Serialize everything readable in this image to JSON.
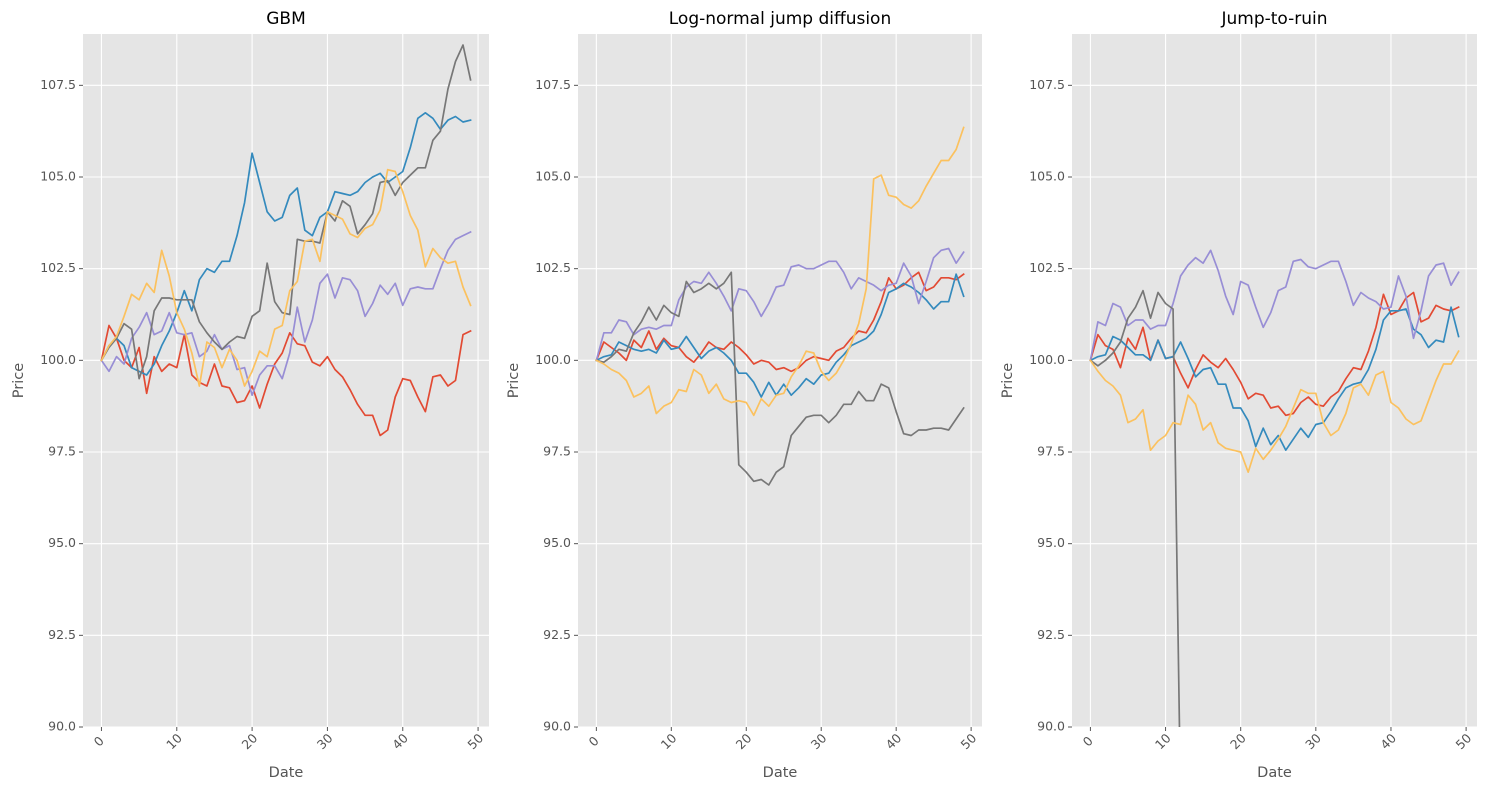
{
  "chart_data": [
    {
      "type": "line",
      "title": "GBM",
      "xlabel": "Date",
      "ylabel": "Price",
      "xlim": [
        -2.45,
        51.45
      ],
      "ylim": [
        90.0,
        108.9
      ],
      "xticks": [
        "0",
        "10",
        "20",
        "30",
        "40",
        "50"
      ],
      "yticks": [
        "90.0",
        "92.5",
        "95.0",
        "97.5",
        "100.0",
        "102.5",
        "105.0",
        "107.5"
      ],
      "grid": true,
      "series": [
        {
          "color": "#E24A33",
          "values": [
            100.0,
            100.95,
            100.6,
            100.0,
            99.8,
            100.35,
            99.1,
            100.1,
            99.7,
            99.9,
            99.8,
            100.7,
            99.6,
            99.4,
            99.3,
            99.9,
            99.3,
            99.25,
            98.85,
            98.9,
            99.3,
            98.7,
            99.35,
            99.9,
            100.2,
            100.75,
            100.45,
            100.4,
            99.95,
            99.85,
            100.1,
            99.75,
            99.55,
            99.2,
            98.8,
            98.5,
            98.5,
            97.95,
            98.1,
            99.0,
            99.5,
            99.45,
            99.0,
            98.6,
            99.55,
            99.6,
            99.3,
            99.45,
            100.7,
            100.8
          ]
        },
        {
          "color": "#348ABD",
          "values": [
            100.0,
            100.4,
            100.6,
            100.4,
            99.8,
            99.7,
            99.6,
            99.9,
            100.4,
            100.8,
            101.3,
            101.9,
            101.35,
            102.2,
            102.5,
            102.4,
            102.7,
            102.7,
            103.4,
            104.3,
            105.65,
            104.85,
            104.05,
            103.8,
            103.9,
            104.5,
            104.7,
            103.55,
            103.4,
            103.9,
            104.05,
            104.6,
            104.55,
            104.5,
            104.6,
            104.85,
            105.0,
            105.1,
            104.85,
            105.0,
            105.15,
            105.8,
            106.6,
            106.75,
            106.6,
            106.3,
            106.55,
            106.65,
            106.5,
            106.55
          ]
        },
        {
          "color": "#988ED5",
          "values": [
            100.0,
            99.7,
            100.1,
            99.9,
            100.6,
            100.9,
            101.3,
            100.7,
            100.8,
            101.3,
            100.75,
            100.7,
            100.75,
            100.1,
            100.25,
            100.7,
            100.3,
            100.4,
            99.75,
            99.8,
            99.05,
            99.6,
            99.85,
            99.85,
            99.5,
            100.2,
            101.45,
            100.5,
            101.1,
            102.1,
            102.35,
            101.7,
            102.25,
            102.2,
            101.9,
            101.2,
            101.55,
            102.05,
            101.8,
            102.1,
            101.5,
            101.95,
            102.0,
            101.95,
            101.95,
            102.5,
            103.0,
            103.3,
            103.4,
            103.5
          ]
        },
        {
          "color": "#777777",
          "values": [
            100.0,
            100.35,
            100.6,
            101.0,
            100.85,
            99.5,
            100.1,
            101.35,
            101.7,
            101.7,
            101.65,
            101.65,
            101.65,
            101.05,
            100.75,
            100.5,
            100.3,
            100.5,
            100.65,
            100.6,
            101.2,
            101.35,
            102.65,
            101.6,
            101.3,
            101.25,
            103.3,
            103.25,
            103.25,
            103.2,
            104.05,
            103.8,
            104.35,
            104.2,
            103.45,
            103.7,
            104.0,
            104.85,
            104.9,
            104.5,
            104.85,
            105.05,
            105.25,
            105.25,
            106.0,
            106.25,
            107.4,
            108.15,
            108.6,
            107.65
          ]
        },
        {
          "color": "#FBC15E",
          "values": [
            100.0,
            100.4,
            100.65,
            101.2,
            101.8,
            101.65,
            102.1,
            101.85,
            103.0,
            102.3,
            101.3,
            100.85,
            100.2,
            99.3,
            100.5,
            100.35,
            99.8,
            100.3,
            100.0,
            99.3,
            99.7,
            100.25,
            100.1,
            100.85,
            100.95,
            101.9,
            102.15,
            103.25,
            103.3,
            102.7,
            104.05,
            103.95,
            103.85,
            103.45,
            103.35,
            103.6,
            103.7,
            104.1,
            105.2,
            105.15,
            104.6,
            103.95,
            103.55,
            102.55,
            103.05,
            102.8,
            102.65,
            102.7,
            102.0,
            101.5
          ]
        }
      ]
    },
    {
      "type": "line",
      "title": "Log-normal jump diffusion",
      "xlabel": "Date",
      "ylabel": "Price",
      "xlim": [
        -2.45,
        51.45
      ],
      "ylim": [
        90.0,
        108.9
      ],
      "xticks": [
        "0",
        "10",
        "20",
        "30",
        "40",
        "50"
      ],
      "yticks": [
        "90.0",
        "92.5",
        "95.0",
        "97.5",
        "100.0",
        "102.5",
        "105.0",
        "107.5"
      ],
      "grid": true,
      "series": [
        {
          "color": "#E24A33",
          "values": [
            100.0,
            100.5,
            100.35,
            100.2,
            100.0,
            100.55,
            100.35,
            100.8,
            100.3,
            100.6,
            100.4,
            100.35,
            100.1,
            99.95,
            100.2,
            100.5,
            100.35,
            100.3,
            100.5,
            100.35,
            100.15,
            99.9,
            100.0,
            99.95,
            99.75,
            99.8,
            99.7,
            99.8,
            100.0,
            100.1,
            100.05,
            100.0,
            100.25,
            100.35,
            100.6,
            100.8,
            100.75,
            101.1,
            101.6,
            102.25,
            101.95,
            102.05,
            102.25,
            102.4,
            101.9,
            102.0,
            102.25,
            102.25,
            102.2,
            102.35
          ]
        },
        {
          "color": "#348ABD",
          "values": [
            100.0,
            100.1,
            100.15,
            100.5,
            100.4,
            100.3,
            100.25,
            100.3,
            100.2,
            100.55,
            100.3,
            100.35,
            100.65,
            100.35,
            100.05,
            100.25,
            100.35,
            100.2,
            100.0,
            99.65,
            99.65,
            99.4,
            99.0,
            99.4,
            99.05,
            99.35,
            99.05,
            99.25,
            99.5,
            99.35,
            99.6,
            99.65,
            99.95,
            100.15,
            100.4,
            100.5,
            100.6,
            100.8,
            101.25,
            101.85,
            101.95,
            102.1,
            102.0,
            101.85,
            101.65,
            101.4,
            101.6,
            101.6,
            102.35,
            101.75
          ]
        },
        {
          "color": "#988ED5",
          "values": [
            100.0,
            100.75,
            100.75,
            101.1,
            101.05,
            100.7,
            100.85,
            100.9,
            100.85,
            100.95,
            100.95,
            101.65,
            102.0,
            102.15,
            102.1,
            102.4,
            102.1,
            101.75,
            101.35,
            101.95,
            101.9,
            101.6,
            101.2,
            101.55,
            102.0,
            102.05,
            102.55,
            102.6,
            102.5,
            102.5,
            102.6,
            102.7,
            102.7,
            102.4,
            101.95,
            102.25,
            102.15,
            102.05,
            101.9,
            102.05,
            102.1,
            102.65,
            102.3,
            101.55,
            102.15,
            102.8,
            103.0,
            103.05,
            102.65,
            102.95
          ]
        },
        {
          "color": "#777777",
          "values": [
            100.0,
            99.95,
            100.1,
            100.3,
            100.25,
            100.75,
            101.05,
            101.45,
            101.1,
            101.5,
            101.3,
            101.2,
            102.15,
            101.85,
            101.95,
            102.1,
            101.95,
            102.1,
            102.4,
            97.15,
            96.95,
            96.7,
            96.75,
            96.6,
            96.95,
            97.1,
            97.95,
            98.2,
            98.45,
            98.5,
            98.5,
            98.3,
            98.5,
            98.8,
            98.8,
            99.15,
            98.9,
            98.9,
            99.35,
            99.25,
            98.6,
            98.0,
            97.95,
            98.1,
            98.1,
            98.15,
            98.15,
            98.1,
            98.4,
            98.7
          ]
        },
        {
          "color": "#FBC15E",
          "values": [
            100.0,
            99.9,
            99.75,
            99.65,
            99.45,
            99.0,
            99.1,
            99.3,
            98.55,
            98.75,
            98.85,
            99.2,
            99.15,
            99.75,
            99.6,
            99.1,
            99.35,
            98.95,
            98.85,
            98.9,
            98.85,
            98.5,
            98.95,
            98.75,
            99.05,
            99.1,
            99.55,
            99.85,
            100.25,
            100.2,
            99.7,
            99.45,
            99.65,
            100.0,
            100.45,
            101.0,
            101.95,
            104.95,
            105.05,
            104.5,
            104.45,
            104.25,
            104.15,
            104.35,
            104.75,
            105.1,
            105.45,
            105.45,
            105.75,
            106.35
          ]
        }
      ]
    },
    {
      "type": "line",
      "title": "Jump-to-ruin",
      "xlabel": "Date",
      "ylabel": "Price",
      "xlim": [
        -2.45,
        51.45
      ],
      "ylim": [
        90.0,
        108.9
      ],
      "xticks": [
        "0",
        "10",
        "20",
        "30",
        "40",
        "50"
      ],
      "yticks": [
        "90.0",
        "92.5",
        "95.0",
        "97.5",
        "100.0",
        "102.5",
        "105.0",
        "107.5"
      ],
      "grid": true,
      "series": [
        {
          "color": "#E24A33",
          "values": [
            100.0,
            100.7,
            100.4,
            100.3,
            99.8,
            100.6,
            100.3,
            100.9,
            100.0,
            100.55,
            100.05,
            100.1,
            99.65,
            99.25,
            99.75,
            100.15,
            99.95,
            99.8,
            100.05,
            99.75,
            99.4,
            98.95,
            99.1,
            99.05,
            98.7,
            98.75,
            98.5,
            98.55,
            98.85,
            99.0,
            98.8,
            98.75,
            99.0,
            99.15,
            99.5,
            99.8,
            99.75,
            100.25,
            100.9,
            101.8,
            101.25,
            101.35,
            101.7,
            101.85,
            101.05,
            101.15,
            101.5,
            101.4,
            101.35,
            101.45
          ]
        },
        {
          "color": "#348ABD",
          "values": [
            100.0,
            100.1,
            100.15,
            100.65,
            100.55,
            100.35,
            100.15,
            100.15,
            100.0,
            100.55,
            100.05,
            100.1,
            100.5,
            100.05,
            99.55,
            99.75,
            99.8,
            99.35,
            99.35,
            98.7,
            98.7,
            98.35,
            97.65,
            98.15,
            97.7,
            97.95,
            97.55,
            97.85,
            98.15,
            97.9,
            98.25,
            98.3,
            98.6,
            98.95,
            99.25,
            99.35,
            99.4,
            99.75,
            100.3,
            101.1,
            101.35,
            101.35,
            101.4,
            100.85,
            100.7,
            100.35,
            100.55,
            100.5,
            101.45,
            100.65
          ]
        },
        {
          "color": "#988ED5",
          "values": [
            100.0,
            101.05,
            100.95,
            101.55,
            101.45,
            100.95,
            101.1,
            101.1,
            100.85,
            100.95,
            100.95,
            101.55,
            102.3,
            102.6,
            102.8,
            102.65,
            103.0,
            102.45,
            101.75,
            101.25,
            102.15,
            102.05,
            101.45,
            100.9,
            101.3,
            101.9,
            102.0,
            102.7,
            102.75,
            102.55,
            102.5,
            102.6,
            102.7,
            102.7,
            102.15,
            101.5,
            101.85,
            101.7,
            101.6,
            101.4,
            101.45,
            102.3,
            101.75,
            100.6,
            101.35,
            102.3,
            102.6,
            102.65,
            102.05,
            102.4
          ]
        },
        {
          "color": "#777777",
          "values": [
            100.0,
            99.85,
            100.0,
            100.2,
            100.5,
            101.15,
            101.45,
            101.9,
            101.15,
            101.85,
            101.55,
            101.4,
            88.0
          ]
        },
        {
          "color": "#FBC15E",
          "values": [
            100.0,
            99.7,
            99.45,
            99.3,
            99.05,
            98.3,
            98.4,
            98.65,
            97.55,
            97.8,
            97.95,
            98.3,
            98.25,
            99.05,
            98.8,
            98.1,
            98.3,
            97.75,
            97.6,
            97.55,
            97.5,
            96.95,
            97.6,
            97.3,
            97.55,
            97.85,
            98.2,
            98.7,
            99.2,
            99.1,
            99.1,
            98.3,
            97.95,
            98.1,
            98.55,
            99.25,
            99.35,
            99.05,
            99.6,
            99.7,
            98.85,
            98.7,
            98.4,
            98.25,
            98.35,
            98.9,
            99.45,
            99.9,
            99.9,
            100.25
          ]
        }
      ]
    }
  ]
}
